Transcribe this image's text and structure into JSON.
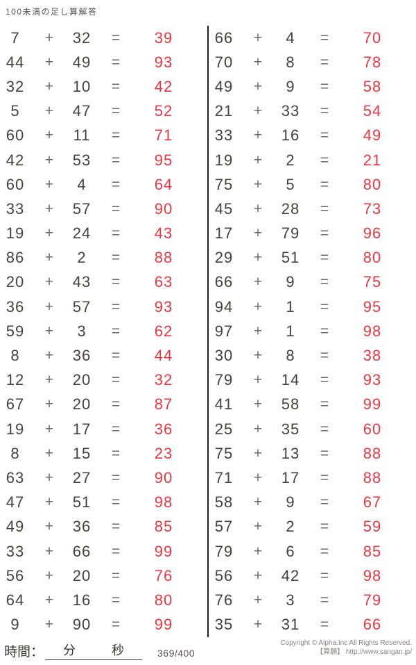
{
  "page": {
    "title": "100未満の足し算解答",
    "symbols": {
      "plus": "+",
      "equals": "="
    },
    "colors": {
      "answer_red": "#ee3540",
      "operand_dark": "#46403f",
      "operator_gray": "#6e6867",
      "divider_black": "#211a18",
      "muted_gray": "#8a8482"
    },
    "footer": {
      "time_label": "時間：",
      "minutes_label": "分",
      "seconds_label": "秒",
      "progress": "369/400",
      "copyright_line1": "Copyright © Alpha.Inc All Rights Reserved.",
      "copyright_line2": "【算願】 http://www.sangan.jp/"
    }
  },
  "problems": {
    "left": [
      {
        "a": "7",
        "b": "32",
        "ans": "39"
      },
      {
        "a": "44",
        "b": "49",
        "ans": "93"
      },
      {
        "a": "32",
        "b": "10",
        "ans": "42"
      },
      {
        "a": "5",
        "b": "47",
        "ans": "52"
      },
      {
        "a": "60",
        "b": "11",
        "ans": "71"
      },
      {
        "a": "42",
        "b": "53",
        "ans": "95"
      },
      {
        "a": "60",
        "b": "4",
        "ans": "64"
      },
      {
        "a": "33",
        "b": "57",
        "ans": "90"
      },
      {
        "a": "19",
        "b": "24",
        "ans": "43"
      },
      {
        "a": "86",
        "b": "2",
        "ans": "88"
      },
      {
        "a": "20",
        "b": "43",
        "ans": "63"
      },
      {
        "a": "36",
        "b": "57",
        "ans": "93"
      },
      {
        "a": "59",
        "b": "3",
        "ans": "62"
      },
      {
        "a": "8",
        "b": "36",
        "ans": "44"
      },
      {
        "a": "12",
        "b": "20",
        "ans": "32"
      },
      {
        "a": "67",
        "b": "20",
        "ans": "87"
      },
      {
        "a": "19",
        "b": "17",
        "ans": "36"
      },
      {
        "a": "8",
        "b": "15",
        "ans": "23"
      },
      {
        "a": "63",
        "b": "27",
        "ans": "90"
      },
      {
        "a": "47",
        "b": "51",
        "ans": "98"
      },
      {
        "a": "49",
        "b": "36",
        "ans": "85"
      },
      {
        "a": "33",
        "b": "66",
        "ans": "99"
      },
      {
        "a": "56",
        "b": "20",
        "ans": "76"
      },
      {
        "a": "64",
        "b": "16",
        "ans": "80"
      },
      {
        "a": "9",
        "b": "90",
        "ans": "99"
      }
    ],
    "right": [
      {
        "a": "66",
        "b": "4",
        "ans": "70"
      },
      {
        "a": "70",
        "b": "8",
        "ans": "78"
      },
      {
        "a": "49",
        "b": "9",
        "ans": "58"
      },
      {
        "a": "21",
        "b": "33",
        "ans": "54"
      },
      {
        "a": "33",
        "b": "16",
        "ans": "49"
      },
      {
        "a": "19",
        "b": "2",
        "ans": "21"
      },
      {
        "a": "75",
        "b": "5",
        "ans": "80"
      },
      {
        "a": "45",
        "b": "28",
        "ans": "73"
      },
      {
        "a": "17",
        "b": "79",
        "ans": "96"
      },
      {
        "a": "29",
        "b": "51",
        "ans": "80"
      },
      {
        "a": "66",
        "b": "9",
        "ans": "75"
      },
      {
        "a": "94",
        "b": "1",
        "ans": "95"
      },
      {
        "a": "97",
        "b": "1",
        "ans": "98"
      },
      {
        "a": "30",
        "b": "8",
        "ans": "38"
      },
      {
        "a": "79",
        "b": "14",
        "ans": "93"
      },
      {
        "a": "41",
        "b": "58",
        "ans": "99"
      },
      {
        "a": "25",
        "b": "35",
        "ans": "60"
      },
      {
        "a": "75",
        "b": "13",
        "ans": "88"
      },
      {
        "a": "71",
        "b": "17",
        "ans": "88"
      },
      {
        "a": "58",
        "b": "9",
        "ans": "67"
      },
      {
        "a": "57",
        "b": "2",
        "ans": "59"
      },
      {
        "a": "79",
        "b": "6",
        "ans": "85"
      },
      {
        "a": "56",
        "b": "42",
        "ans": "98"
      },
      {
        "a": "76",
        "b": "3",
        "ans": "79"
      },
      {
        "a": "35",
        "b": "31",
        "ans": "66"
      }
    ]
  }
}
